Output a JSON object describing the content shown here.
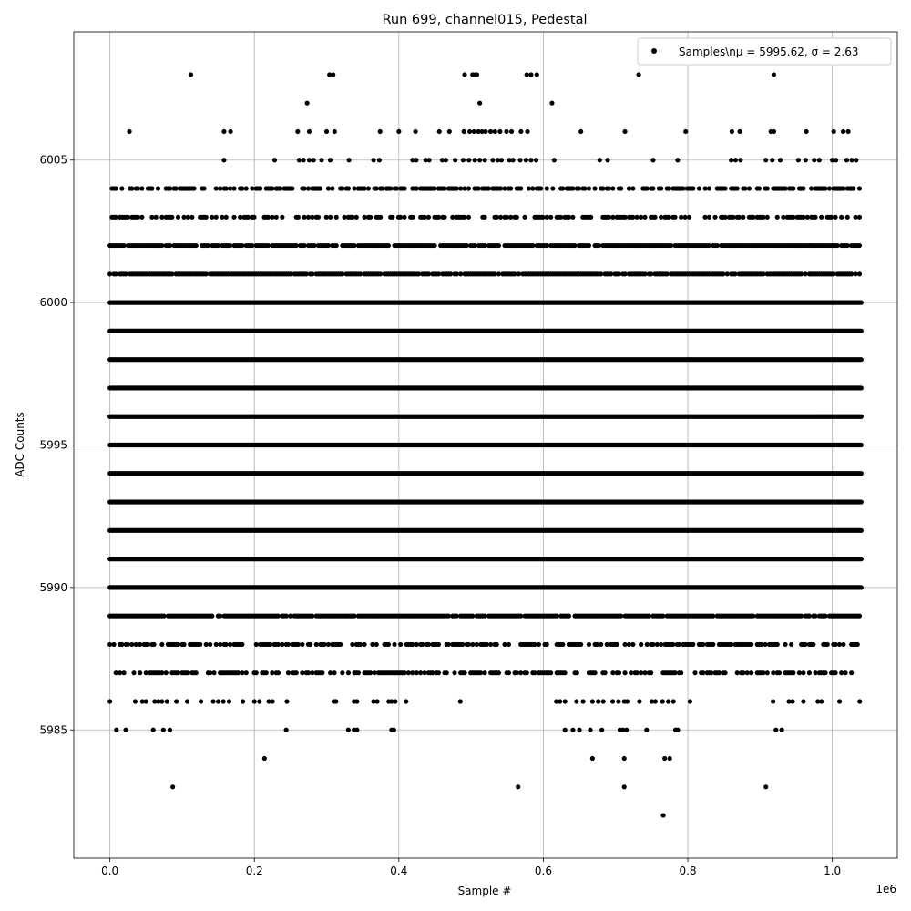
{
  "chart_data": {
    "type": "scatter",
    "title": "Run 699, channel015, Pedestal",
    "xlabel": "Sample #",
    "ylabel": "ADC Counts",
    "x_offset_text": "1e6",
    "xlim": [
      -50000,
      1090000
    ],
    "ylim": [
      5980.5,
      6009.5
    ],
    "x_ticks": [
      0.0,
      0.2,
      0.4,
      0.6,
      0.8,
      1.0
    ],
    "x_tick_labels": [
      "0.0",
      "0.2",
      "0.4",
      "0.6",
      "0.8",
      "1.0"
    ],
    "y_ticks": [
      5985,
      5990,
      5995,
      6000,
      6005
    ],
    "y_tick_labels": [
      "5985",
      "5990",
      "5995",
      "6000",
      "6005"
    ],
    "grid": true,
    "legend_position": "top-right",
    "marker_color": "#000000",
    "series": [
      {
        "name": "Samples\\nμ = 5995.62, σ = 2.63",
        "legend_label": "Samples\\nμ = 5995.62, σ = 2.63",
        "x_range": [
          0,
          1040000
        ],
        "levels": [
          {
            "y": 5982,
            "x": [
              766000
            ]
          },
          {
            "y": 5983,
            "x": [
              87000,
              565000,
              712000,
              908000
            ]
          },
          {
            "y": 5984,
            "x": [
              214000,
              668000,
              712000,
              768000,
              775000
            ]
          },
          {
            "y": 5985,
            "x": [
              9000,
              22000,
              60000,
              74000,
              83000,
              244000,
              330000,
              338000,
              342000,
              390000,
              393000,
              630000,
              641000,
              650000,
              665000,
              681000,
              706000,
              710000,
              715000,
              743000,
              783000,
              786000,
              922000,
              930000
            ]
          },
          {
            "y": 5986,
            "x": [
              0,
              35000,
              45000,
              50000,
              62000,
              67000,
              72000,
              79000,
              92000,
              107000,
              126000,
              143000,
              150000,
              157000,
              165000,
              184000,
              200000,
              207000,
              220000,
              225000,
              245000,
              310000,
              313000,
              338000,
              342000,
              365000,
              370000,
              386000,
              390000,
              395000,
              410000,
              485000,
              618000,
              623000,
              630000,
              646000,
              655000,
              668000,
              676000,
              683000,
              696000,
              704000,
              712000,
              716000,
              733000,
              750000,
              755000,
              765000,
              773000,
              780000,
              803000,
              918000,
              940000,
              945000,
              960000,
              980000,
              985000,
              1010000,
              1038000
            ]
          },
          {
            "y": 5987,
            "x_dense_from": 0,
            "x_dense_to": 1040000,
            "density": "medium"
          },
          {
            "y": 5988,
            "x_dense_from": 0,
            "x_dense_to": 1040000,
            "density": "medium"
          },
          {
            "y": 5989,
            "x_dense_from": 0,
            "x_dense_to": 1040000,
            "density": "high"
          },
          {
            "y": 5990,
            "x_dense_from": 0,
            "x_dense_to": 1040000,
            "density": "full"
          },
          {
            "y": 5991,
            "x_dense_from": 0,
            "x_dense_to": 1040000,
            "density": "full"
          },
          {
            "y": 5992,
            "x_dense_from": 0,
            "x_dense_to": 1040000,
            "density": "full"
          },
          {
            "y": 5993,
            "x_dense_from": 0,
            "x_dense_to": 1040000,
            "density": "full"
          },
          {
            "y": 5994,
            "x_dense_from": 0,
            "x_dense_to": 1040000,
            "density": "full"
          },
          {
            "y": 5995,
            "x_dense_from": 0,
            "x_dense_to": 1040000,
            "density": "full"
          },
          {
            "y": 5996,
            "x_dense_from": 0,
            "x_dense_to": 1040000,
            "density": "full"
          },
          {
            "y": 5997,
            "x_dense_from": 0,
            "x_dense_to": 1040000,
            "density": "full"
          },
          {
            "y": 5998,
            "x_dense_from": 0,
            "x_dense_to": 1040000,
            "density": "full"
          },
          {
            "y": 5999,
            "x_dense_from": 0,
            "x_dense_to": 1040000,
            "density": "full"
          },
          {
            "y": 6000,
            "x_dense_from": 0,
            "x_dense_to": 1040000,
            "density": "full"
          },
          {
            "y": 6001,
            "x_dense_from": 0,
            "x_dense_to": 1040000,
            "density": "high"
          },
          {
            "y": 6002,
            "x_dense_from": 0,
            "x_dense_to": 1040000,
            "density": "high"
          },
          {
            "y": 6003,
            "x_dense_from": 0,
            "x_dense_to": 1040000,
            "density": "medium"
          },
          {
            "y": 6004,
            "x_dense_from": 0,
            "x_dense_to": 1040000,
            "density": "medium"
          },
          {
            "y": 6005,
            "x": [
              158000,
              228000,
              262000,
              268000,
              276000,
              282000,
              293000,
              305000,
              331000,
              365000,
              373000,
              419000,
              424000,
              437000,
              442000,
              460000,
              465000,
              478000,
              489000,
              497000,
              505000,
              512000,
              519000,
              530000,
              537000,
              542000,
              553000,
              558000,
              568000,
              576000,
              583000,
              590000,
              615000,
              678000,
              689000,
              752000,
              786000,
              860000,
              866000,
              873000,
              908000,
              917000,
              928000,
              953000,
              963000,
              975000,
              982000,
              1000000,
              1005000,
              1020000,
              1027000,
              1033000
            ]
          },
          {
            "y": 6006,
            "x": [
              27000,
              158000,
              167000,
              260000,
              276000,
              300000,
              311000,
              374000,
              400000,
              423000,
              456000,
              470000,
              490000,
              498000,
              504000,
              510000,
              515000,
              520000,
              527000,
              533000,
              540000,
              549000,
              556000,
              569000,
              578000,
              652000,
              713000,
              797000,
              861000,
              872000,
              915000,
              919000,
              964000,
              1002000,
              1015000,
              1022000
            ]
          },
          {
            "y": 6007,
            "x": [
              273000,
              512000,
              612000
            ]
          },
          {
            "y": 6008,
            "x": [
              112000,
              304000,
              309000,
              491000,
              502000,
              506000,
              508000,
              577000,
              583000,
              591000,
              732000,
              919000
            ]
          }
        ]
      }
    ]
  }
}
